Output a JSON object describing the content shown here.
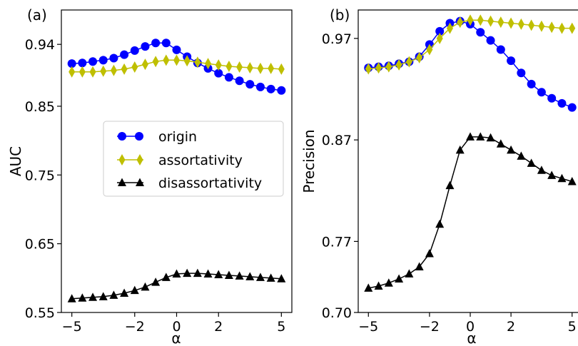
{
  "chart_data": [
    {
      "type": "line",
      "panel_label": "(a)",
      "xlabel": "α",
      "ylabel": "AUC",
      "xlim": [
        -5.5,
        5.5
      ],
      "ylim": [
        0.55,
        0.99
      ],
      "xticks": [
        -5,
        -2,
        0,
        2,
        5
      ],
      "xtick_labels": [
        "−5",
        "−2",
        "0",
        "2",
        "5"
      ],
      "yticks": [
        0.55,
        0.65,
        0.75,
        0.85,
        0.94
      ],
      "ytick_labels": [
        "0.55",
        "0.65",
        "0.75",
        "0.85",
        "0.94"
      ],
      "grid": false,
      "legend_position": "center-right",
      "x": [
        -5,
        -4.5,
        -4,
        -3.5,
        -3,
        -2.5,
        -2,
        -1.5,
        -1,
        -0.5,
        0,
        0.5,
        1,
        1.5,
        2,
        2.5,
        3,
        3.5,
        4,
        4.5,
        5
      ],
      "series": [
        {
          "name": "origin",
          "color": "#0000ff",
          "marker": "circle",
          "values": [
            0.912,
            0.913,
            0.915,
            0.917,
            0.92,
            0.925,
            0.931,
            0.937,
            0.942,
            0.942,
            0.932,
            0.922,
            0.913,
            0.905,
            0.898,
            0.892,
            0.887,
            0.882,
            0.878,
            0.875,
            0.873
          ]
        },
        {
          "name": "assortativity",
          "color": "#bfbf00",
          "marker": "diamond",
          "values": [
            0.9,
            0.9,
            0.9,
            0.901,
            0.902,
            0.904,
            0.907,
            0.911,
            0.915,
            0.917,
            0.917,
            0.916,
            0.914,
            0.912,
            0.91,
            0.908,
            0.907,
            0.906,
            0.905,
            0.905,
            0.904
          ]
        },
        {
          "name": "disassortativity",
          "color": "#000000",
          "marker": "triangle",
          "values": [
            0.57,
            0.571,
            0.572,
            0.573,
            0.575,
            0.578,
            0.582,
            0.587,
            0.594,
            0.601,
            0.606,
            0.607,
            0.607,
            0.606,
            0.605,
            0.604,
            0.603,
            0.602,
            0.601,
            0.6,
            0.599
          ]
        }
      ]
    },
    {
      "type": "line",
      "panel_label": "(b)",
      "xlabel": "α",
      "ylabel": "Precision",
      "xlim": [
        -5.5,
        5.5
      ],
      "ylim": [
        0.7,
        0.998
      ],
      "xticks": [
        -5,
        -2,
        0,
        2,
        5
      ],
      "xtick_labels": [
        "−5",
        "−2",
        "0",
        "2",
        "5"
      ],
      "yticks": [
        0.7,
        0.77,
        0.87,
        0.97
      ],
      "ytick_labels": [
        "0.70",
        "0.77",
        "0.87",
        "0.97"
      ],
      "grid": false,
      "x": [
        -5,
        -4.5,
        -4,
        -3.5,
        -3,
        -2.5,
        -2,
        -1.5,
        -1,
        -0.5,
        0,
        0.5,
        1,
        1.5,
        2,
        2.5,
        3,
        3.5,
        4,
        4.5,
        5
      ],
      "series": [
        {
          "name": "origin",
          "color": "#0000ff",
          "marker": "circle",
          "values": [
            0.941,
            0.942,
            0.943,
            0.945,
            0.947,
            0.952,
            0.964,
            0.977,
            0.985,
            0.987,
            0.984,
            0.976,
            0.968,
            0.959,
            0.948,
            0.936,
            0.925,
            0.917,
            0.911,
            0.906,
            0.902
          ]
        },
        {
          "name": "assortativity",
          "color": "#bfbf00",
          "marker": "diamond",
          "values": [
            0.94,
            0.941,
            0.942,
            0.944,
            0.947,
            0.951,
            0.959,
            0.97,
            0.98,
            0.986,
            0.988,
            0.988,
            0.987,
            0.986,
            0.985,
            0.984,
            0.983,
            0.982,
            0.981,
            0.98,
            0.98
          ]
        },
        {
          "name": "disassortativity",
          "color": "#000000",
          "marker": "triangle",
          "values": [
            0.724,
            0.726,
            0.729,
            0.733,
            0.738,
            0.745,
            0.758,
            0.787,
            0.825,
            0.86,
            0.873,
            0.873,
            0.872,
            0.866,
            0.86,
            0.854,
            0.847,
            0.84,
            0.835,
            0.832,
            0.829
          ]
        }
      ]
    }
  ]
}
